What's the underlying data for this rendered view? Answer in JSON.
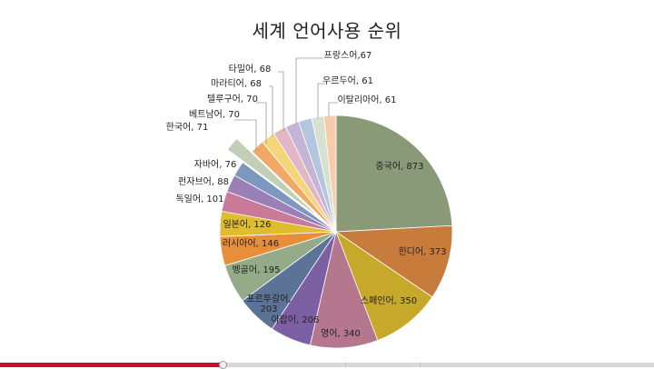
{
  "chart_data": {
    "type": "pie",
    "title": "세계 언어사용 순위",
    "exploded": [
      "한국어"
    ],
    "slices": [
      {
        "label": "중국어",
        "value": 873,
        "color": "#8a9a78",
        "text": "중국어, 873"
      },
      {
        "label": "힌디어",
        "value": 373,
        "color": "#c77c3c",
        "text": "힌디어, 373"
      },
      {
        "label": "스페인어",
        "value": 350,
        "color": "#c6a82a",
        "text": "스페인어, 350"
      },
      {
        "label": "영어",
        "value": 340,
        "color": "#b4778d",
        "text": "영어, 340"
      },
      {
        "label": "아랍어",
        "value": 206,
        "color": "#7b5fa2",
        "text": "아랍어, 206"
      },
      {
        "label": "포르투갈어",
        "value": 203,
        "color": "#5a7397",
        "text": [
          "포르투갈어,",
          "203"
        ]
      },
      {
        "label": "벵골어",
        "value": 195,
        "color": "#95aa88",
        "text": "벵골어, 195"
      },
      {
        "label": "러시아어",
        "value": 146,
        "color": "#e78e3a",
        "text": "러시아어, 146"
      },
      {
        "label": "일본어",
        "value": 126,
        "color": "#e0bd2e",
        "text": "일본어, 126"
      },
      {
        "label": "독일어",
        "value": 101,
        "color": "#c97a98",
        "text": "독일어, 101"
      },
      {
        "label": "펀자브어",
        "value": 88,
        "color": "#9b80b8",
        "text": "펀자브어, 88"
      },
      {
        "label": "자바어",
        "value": 76,
        "color": "#7c98be",
        "text": "자바어, 76"
      },
      {
        "label": "한국어",
        "value": 71,
        "color": "#c2cfb4",
        "text": "한국어, 71"
      },
      {
        "label": "베트남어",
        "value": 70,
        "color": "#f2a867",
        "text": "베트남어, 70"
      },
      {
        "label": "텔루구어",
        "value": 70,
        "color": "#f5d57a",
        "text": "텔루구어, 70"
      },
      {
        "label": "마라티어",
        "value": 68,
        "color": "#e2b6c6",
        "text": "마라티어, 68"
      },
      {
        "label": "타밀어",
        "value": 68,
        "color": "#c5b4d7",
        "text": "타밀어, 68"
      },
      {
        "label": "프랑스어",
        "value": 67,
        "color": "#b3c6de",
        "text": "프랑스어,67"
      },
      {
        "label": "우르두어",
        "value": 61,
        "color": "#d7e1cf",
        "text": "우르두어, 61"
      },
      {
        "label": "이탈리아어",
        "value": 61,
        "color": "#f7ccab",
        "text": "이탈리아어, 61"
      }
    ]
  },
  "player": {
    "progress": 0.34
  }
}
